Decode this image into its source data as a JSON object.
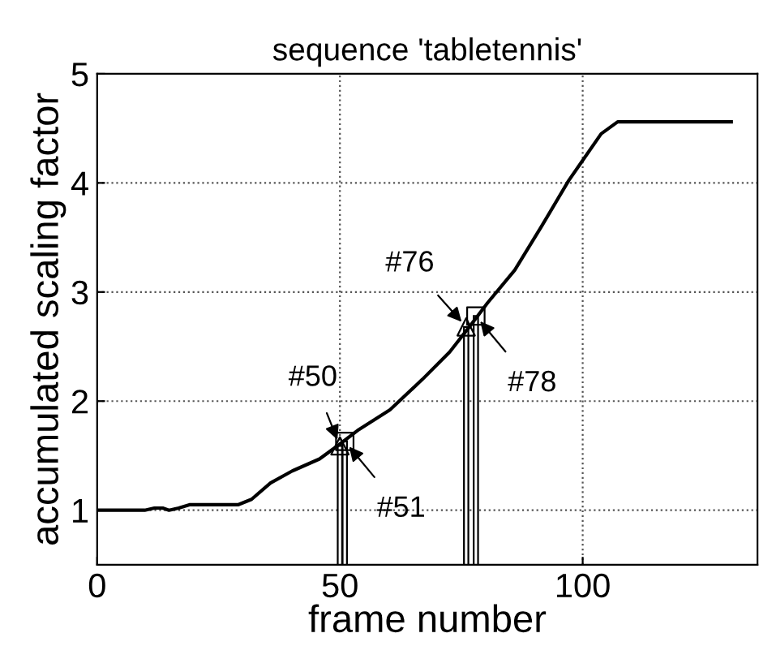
{
  "chart_data": {
    "type": "line",
    "title": "sequence 'tabletennis'",
    "xlabel": "frame number",
    "ylabel": "accumulated scaling factor",
    "xlim": [
      0,
      136
    ],
    "xticks": [
      0,
      50,
      100
    ],
    "ylim": [
      0.5,
      5
    ],
    "yticks": [
      1,
      2,
      3,
      4,
      5
    ],
    "grid": true,
    "series": [
      {
        "color": "#000000",
        "marker": "none",
        "x": [
          0,
          9.8,
          11.8,
          13.5,
          14.8,
          16.8,
          19,
          29,
          31.8,
          35.7,
          40.2,
          45.8,
          49.8,
          53.6,
          60.3,
          67,
          72.6,
          77,
          80.4,
          86,
          91.5,
          97.1,
          99.9,
          103.8,
          107.2,
          130.6
        ],
        "values": [
          1.0,
          1.0,
          1.02,
          1.02,
          1.0,
          1.02,
          1.05,
          1.05,
          1.1,
          1.25,
          1.36,
          1.47,
          1.6,
          1.73,
          1.92,
          2.2,
          2.45,
          2.7,
          2.9,
          3.2,
          3.6,
          4.02,
          4.2,
          4.45,
          4.56,
          4.56
        ]
      },
      {
        "type": "bar",
        "color": "#000000",
        "x": [
          50,
          51,
          76,
          78
        ],
        "values": [
          1.59,
          1.63,
          2.68,
          2.78
        ]
      },
      {
        "type": "scatter",
        "color": "#000000",
        "marker": "triangle",
        "x": [
          50,
          76
        ],
        "values": [
          1.59,
          2.68
        ]
      },
      {
        "type": "scatter",
        "color": "#000000",
        "marker": "square",
        "x": [
          51,
          78
        ],
        "values": [
          1.63,
          2.78
        ]
      }
    ],
    "annotations": [
      {
        "text": "#50",
        "x": 50,
        "y": 1.59
      },
      {
        "text": "#51",
        "x": 51,
        "y": 1.63
      },
      {
        "text": "#76",
        "x": 76,
        "y": 2.68
      },
      {
        "text": "#78",
        "x": 78,
        "y": 2.78
      }
    ]
  }
}
